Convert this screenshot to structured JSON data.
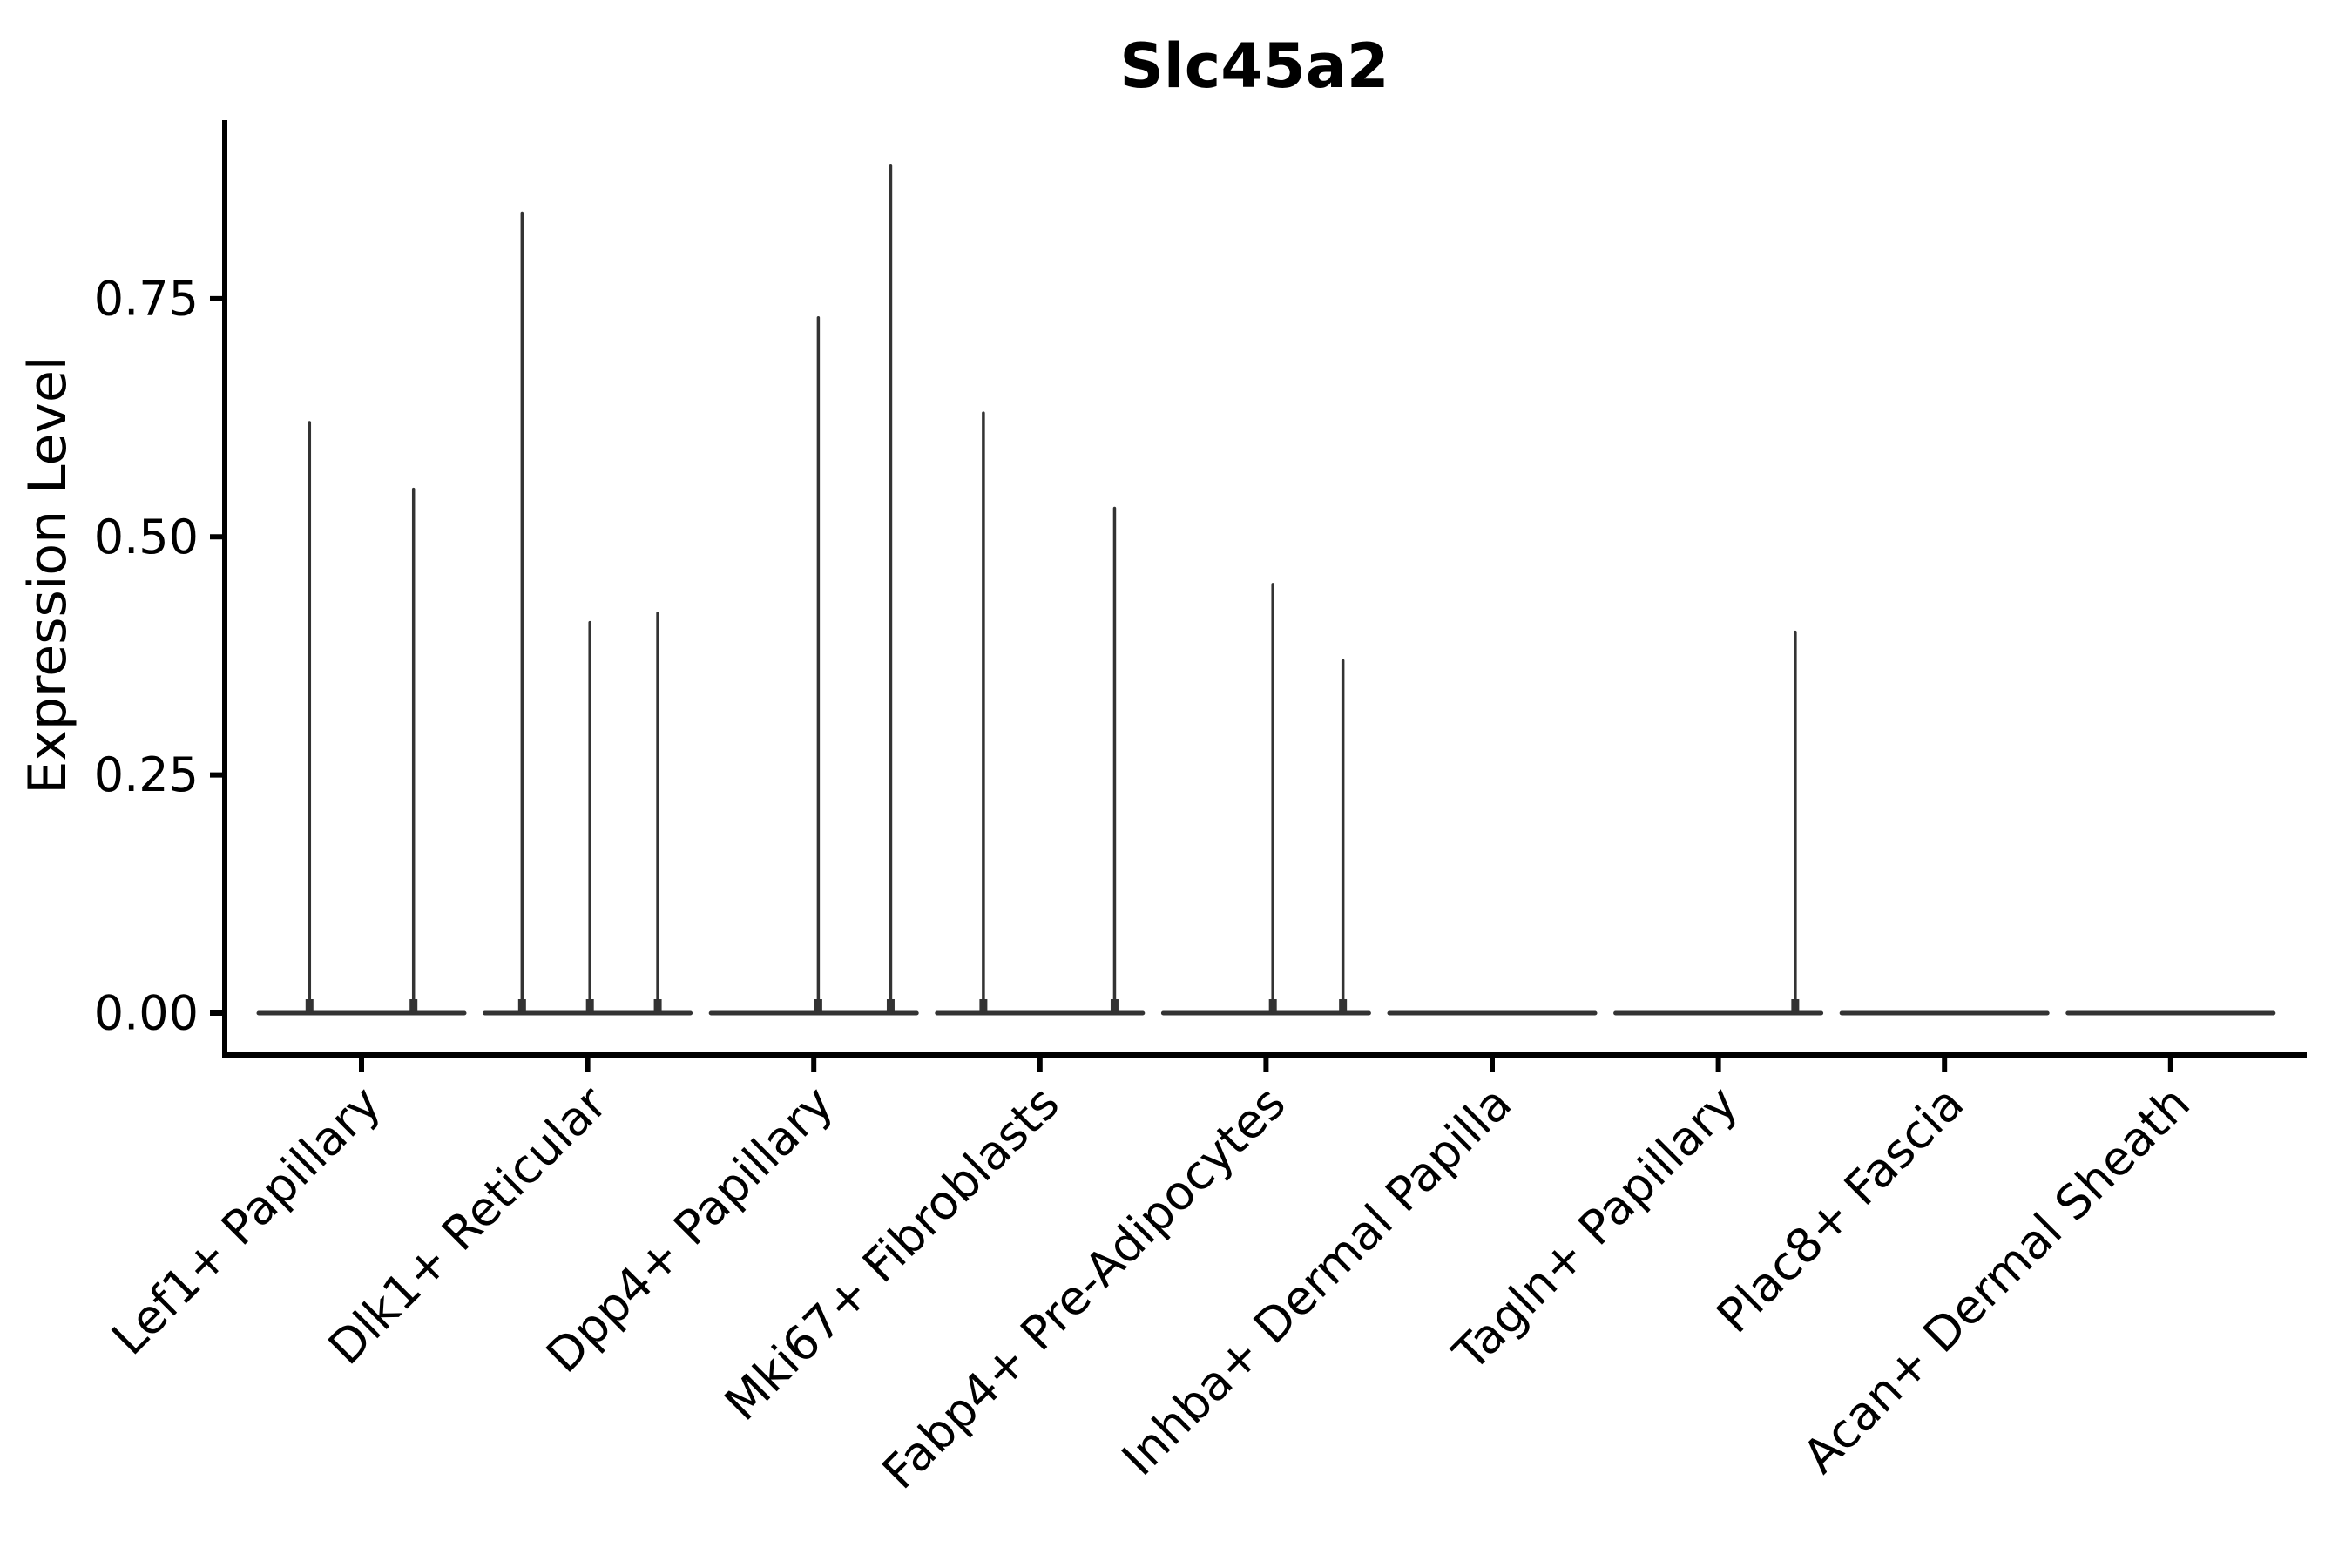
{
  "chart_data": {
    "type": "violin",
    "title": "Slc45a2",
    "xlabel": "",
    "ylabel": "Expression Level",
    "ylim": [
      -0.044,
      0.937
    ],
    "yticks": [
      0,
      0.25,
      0.5,
      0.75
    ],
    "ytick_labels": [
      "0.00",
      "0.25",
      "0.50",
      "0.75"
    ],
    "grid": false,
    "legend": "none",
    "categories": [
      "Lef1+ Papillary",
      "Dlk1+ Reticular",
      "Dpp4+ Papillary",
      "Mki67+ Fibroblasts",
      "Fabp4+ Pre-Adipocytes",
      "Inhba+ Dermal Papilla",
      "Tagln+ Papillary",
      "Plac8+ Fascia",
      "Acan+ Dermal Sheath"
    ],
    "violins": [
      {
        "category": "Lef1+ Papillary",
        "baseline_value": 0,
        "spikes": [
          {
            "offset_frac": -0.23,
            "max": 0.62
          },
          {
            "offset_frac": 0.23,
            "max": 0.55
          }
        ]
      },
      {
        "category": "Dlk1+ Reticular",
        "baseline_value": 0,
        "spikes": [
          {
            "offset_frac": -0.29,
            "max": 0.84
          },
          {
            "offset_frac": 0.01,
            "max": 0.41
          },
          {
            "offset_frac": 0.31,
            "max": 0.42
          }
        ]
      },
      {
        "category": "Dpp4+ Papillary",
        "baseline_value": 0,
        "spikes": [
          {
            "offset_frac": 0.02,
            "max": 0.73
          },
          {
            "offset_frac": 0.34,
            "max": 0.89
          }
        ]
      },
      {
        "category": "Mki67+ Fibroblasts",
        "baseline_value": 0,
        "spikes": [
          {
            "offset_frac": -0.25,
            "max": 0.63
          },
          {
            "offset_frac": 0.33,
            "max": 0.53
          }
        ]
      },
      {
        "category": "Fabp4+ Pre-Adipocytes",
        "baseline_value": 0,
        "spikes": [
          {
            "offset_frac": 0.03,
            "max": 0.45
          },
          {
            "offset_frac": 0.34,
            "max": 0.37
          }
        ]
      },
      {
        "category": "Inhba+ Dermal Papilla",
        "baseline_value": 0,
        "spikes": []
      },
      {
        "category": "Tagln+ Papillary",
        "baseline_value": 0,
        "spikes": [
          {
            "offset_frac": 0.34,
            "max": 0.4
          }
        ]
      },
      {
        "category": "Plac8+ Fascia",
        "baseline_value": 0,
        "spikes": []
      },
      {
        "category": "Acan+ Dermal Sheath",
        "baseline_value": 0,
        "spikes": []
      }
    ],
    "colors": {
      "violin_stroke": "#333333",
      "axis": "#000000",
      "text": "#000000",
      "background": "#ffffff"
    }
  }
}
